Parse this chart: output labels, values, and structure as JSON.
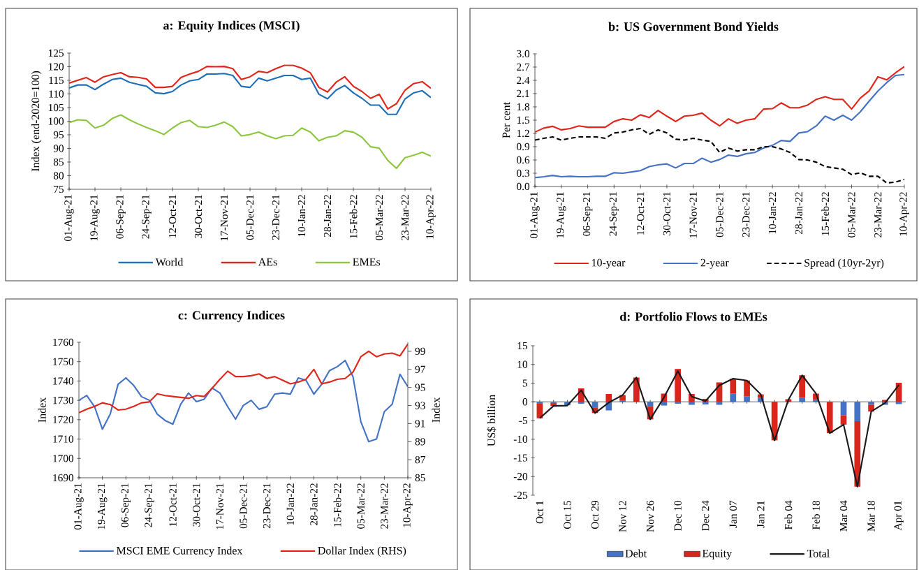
{
  "chart_data": [
    {
      "type": "line",
      "title": "a: Equity Indices (MSCI)",
      "ylabel": "Index (end-2020=100)",
      "legend": "bottom",
      "x": [
        "2021-08-01",
        "2021-08-07",
        "2021-08-13",
        "2021-08-19",
        "2021-08-25",
        "2021-08-31",
        "2021-09-06",
        "2021-09-12",
        "2021-09-18",
        "2021-09-24",
        "2021-09-30",
        "2021-10-06",
        "2021-10-12",
        "2021-10-18",
        "2021-10-24",
        "2021-10-30",
        "2021-11-05",
        "2021-11-11",
        "2021-11-17",
        "2021-11-23",
        "2021-11-29",
        "2021-12-05",
        "2021-12-11",
        "2021-12-17",
        "2021-12-23",
        "2021-12-29",
        "2022-01-04",
        "2022-01-10",
        "2022-01-16",
        "2022-01-22",
        "2022-01-28",
        "2022-02-03",
        "2022-02-09",
        "2022-02-15",
        "2022-02-21",
        "2022-02-27",
        "2022-03-05",
        "2022-03-11",
        "2022-03-17",
        "2022-03-23",
        "2022-03-29",
        "2022-04-04",
        "2022-04-10"
      ],
      "xlim": [
        "2021-08-01",
        "2022-04-10"
      ],
      "xticks": [
        {
          "value": "2021-08-01",
          "label": "01-Aug-21"
        },
        {
          "value": "2021-08-19",
          "label": "19-Aug-21"
        },
        {
          "value": "2021-09-06",
          "label": "06-Sep-21"
        },
        {
          "value": "2021-09-24",
          "label": "24-Sep-21"
        },
        {
          "value": "2021-10-12",
          "label": "12-Oct-21"
        },
        {
          "value": "2021-10-30",
          "label": "30-Oct-21"
        },
        {
          "value": "2021-11-17",
          "label": "17-Nov-21"
        },
        {
          "value": "2021-12-05",
          "label": "05-Dec-21"
        },
        {
          "value": "2021-12-23",
          "label": "23-Dec-21"
        },
        {
          "value": "2022-01-10",
          "label": "10-Jan-22"
        },
        {
          "value": "2022-01-28",
          "label": "28-Jan-22"
        },
        {
          "value": "2022-02-15",
          "label": "15-Feb-22"
        },
        {
          "value": "2022-03-05",
          "label": "05-Mar-22"
        },
        {
          "value": "2022-03-23",
          "label": "23-Mar-22"
        },
        {
          "value": "2022-04-10",
          "label": "10-Apr-22"
        }
      ],
      "ylim": [
        75,
        125
      ],
      "yticks": [
        75,
        80,
        85,
        90,
        95,
        100,
        105,
        110,
        115,
        120,
        125
      ],
      "series": [
        {
          "name": "World",
          "color": "#1f6fb8",
          "values": [
            112.2,
            113.3,
            113.3,
            111.6,
            113.6,
            115.3,
            115.8,
            114.3,
            113.5,
            112.8,
            110.4,
            110.1,
            110.9,
            113.3,
            114.8,
            115.3,
            117.3,
            117.3,
            117.5,
            116.8,
            112.8,
            112.4,
            115.8,
            114.8,
            115.8,
            116.8,
            116.8,
            115.3,
            115.8,
            109.9,
            108.2,
            111.4,
            113.1,
            110.4,
            108.4,
            105.9,
            105.9,
            102.5,
            102.5,
            108.2,
            110.4,
            111.2,
            108.7
          ]
        },
        {
          "name": "AEs",
          "color": "#e0261b",
          "values": [
            114.0,
            115.0,
            116.0,
            114.3,
            116.3,
            117.1,
            117.8,
            116.3,
            116.1,
            115.5,
            112.4,
            112.4,
            112.8,
            116.1,
            117.3,
            118.3,
            120.1,
            120.0,
            120.1,
            119.3,
            115.3,
            116.3,
            118.3,
            117.8,
            119.3,
            120.5,
            120.5,
            119.5,
            117.8,
            112.4,
            110.7,
            114.3,
            116.3,
            112.8,
            110.9,
            108.4,
            109.9,
            104.5,
            106.4,
            111.4,
            113.8,
            114.5,
            112.1
          ]
        },
        {
          "name": "EMEs",
          "color": "#8dc63f",
          "values": [
            99.5,
            100.5,
            100.3,
            97.5,
            98.5,
            101.0,
            102.3,
            100.5,
            99.0,
            97.7,
            96.5,
            95.1,
            97.5,
            99.5,
            100.3,
            98.0,
            97.7,
            98.5,
            99.7,
            98.0,
            94.6,
            95.1,
            96.0,
            94.6,
            93.6,
            94.6,
            94.8,
            97.5,
            96.0,
            92.8,
            94.1,
            94.6,
            96.5,
            96.0,
            94.1,
            90.6,
            90.1,
            85.6,
            82.7,
            86.6,
            87.5,
            88.6,
            87.2
          ]
        }
      ]
    },
    {
      "type": "line",
      "title": "b: US Government Bond Yields",
      "ylabel": "Per cent",
      "legend": "bottom",
      "x": [
        "2021-08-01",
        "2021-08-07",
        "2021-08-13",
        "2021-08-19",
        "2021-08-25",
        "2021-08-31",
        "2021-09-06",
        "2021-09-12",
        "2021-09-18",
        "2021-09-24",
        "2021-09-30",
        "2021-10-06",
        "2021-10-12",
        "2021-10-18",
        "2021-10-24",
        "2021-10-30",
        "2021-11-05",
        "2021-11-11",
        "2021-11-17",
        "2021-11-23",
        "2021-11-29",
        "2021-12-05",
        "2021-12-11",
        "2021-12-17",
        "2021-12-23",
        "2021-12-29",
        "2022-01-04",
        "2022-01-10",
        "2022-01-16",
        "2022-01-22",
        "2022-01-28",
        "2022-02-03",
        "2022-02-09",
        "2022-02-15",
        "2022-02-21",
        "2022-02-27",
        "2022-03-05",
        "2022-03-11",
        "2022-03-17",
        "2022-03-23",
        "2022-03-29",
        "2022-04-04",
        "2022-04-10"
      ],
      "xlim": [
        "2021-08-01",
        "2022-04-10"
      ],
      "xticks": [
        {
          "value": "2021-08-01",
          "label": "01-Aug-21"
        },
        {
          "value": "2021-08-19",
          "label": "19-Aug-21"
        },
        {
          "value": "2021-09-06",
          "label": "06-Sep-21"
        },
        {
          "value": "2021-09-24",
          "label": "24-Sep-21"
        },
        {
          "value": "2021-10-12",
          "label": "12-Oct-21"
        },
        {
          "value": "2021-10-30",
          "label": "30-Oct-21"
        },
        {
          "value": "2021-11-17",
          "label": "17-Nov-21"
        },
        {
          "value": "2021-12-05",
          "label": "05-Dec-21"
        },
        {
          "value": "2021-12-23",
          "label": "23-Dec-21"
        },
        {
          "value": "2022-01-10",
          "label": "10-Jan-22"
        },
        {
          "value": "2022-01-28",
          "label": "28-Jan-22"
        },
        {
          "value": "2022-02-15",
          "label": "15-Feb-22"
        },
        {
          "value": "2022-03-05",
          "label": "05-Mar-22"
        },
        {
          "value": "2022-03-23",
          "label": "23-Mar-22"
        },
        {
          "value": "2022-04-10",
          "label": "10-Apr-22"
        }
      ],
      "ylim": [
        0,
        3
      ],
      "yticks": [
        {
          "value": 0,
          "label": "0.0"
        },
        {
          "value": 0.3,
          "label": "0.3"
        },
        {
          "value": 0.6,
          "label": "0.6"
        },
        {
          "value": 0.9,
          "label": "0.9"
        },
        {
          "value": 1.2,
          "label": "1.2"
        },
        {
          "value": 1.5,
          "label": "1.5"
        },
        {
          "value": 1.8,
          "label": "1.8"
        },
        {
          "value": 2.1,
          "label": "2.1"
        },
        {
          "value": 2.4,
          "label": "2.4"
        },
        {
          "value": 2.7,
          "label": "2.7"
        },
        {
          "value": 3,
          "label": "3.0"
        }
      ],
      "series": [
        {
          "name": "10-year",
          "color": "#e0261b",
          "values": [
            1.23,
            1.32,
            1.36,
            1.28,
            1.31,
            1.37,
            1.34,
            1.34,
            1.34,
            1.47,
            1.53,
            1.5,
            1.62,
            1.56,
            1.72,
            1.59,
            1.47,
            1.59,
            1.61,
            1.66,
            1.5,
            1.37,
            1.53,
            1.43,
            1.5,
            1.53,
            1.75,
            1.76,
            1.89,
            1.78,
            1.78,
            1.84,
            1.97,
            2.03,
            1.97,
            1.97,
            1.75,
            2.0,
            2.16,
            2.48,
            2.41,
            2.57,
            2.71
          ]
        },
        {
          "name": "2-year",
          "color": "#4472c4",
          "values": [
            0.2,
            0.22,
            0.25,
            0.22,
            0.23,
            0.22,
            0.22,
            0.23,
            0.23,
            0.31,
            0.3,
            0.33,
            0.36,
            0.45,
            0.49,
            0.51,
            0.42,
            0.52,
            0.52,
            0.64,
            0.55,
            0.61,
            0.71,
            0.68,
            0.74,
            0.77,
            0.87,
            0.93,
            1.04,
            1.02,
            1.21,
            1.24,
            1.37,
            1.59,
            1.5,
            1.61,
            1.5,
            1.69,
            1.93,
            2.16,
            2.35,
            2.51,
            2.53
          ]
        },
        {
          "name": "Spread (10yr-2yr)",
          "color": "#000000",
          "line_style": "dashed",
          "values": [
            1.05,
            1.09,
            1.12,
            1.05,
            1.09,
            1.12,
            1.12,
            1.12,
            1.09,
            1.21,
            1.23,
            1.28,
            1.31,
            1.18,
            1.28,
            1.21,
            1.07,
            1.05,
            1.09,
            1.05,
            1.02,
            0.77,
            0.87,
            0.8,
            0.83,
            0.83,
            0.9,
            0.9,
            0.85,
            0.77,
            0.61,
            0.6,
            0.55,
            0.45,
            0.42,
            0.39,
            0.27,
            0.31,
            0.23,
            0.23,
            0.08,
            0.1,
            0.16
          ]
        }
      ]
    },
    {
      "type": "line",
      "title": "c: Currency Indices",
      "ylabel": "Index",
      "y2label": "Index",
      "legend": "bottom",
      "x": [
        "2021-08-01",
        "2021-08-07",
        "2021-08-13",
        "2021-08-19",
        "2021-08-25",
        "2021-08-31",
        "2021-09-06",
        "2021-09-12",
        "2021-09-18",
        "2021-09-24",
        "2021-09-30",
        "2021-10-06",
        "2021-10-12",
        "2021-10-18",
        "2021-10-24",
        "2021-10-30",
        "2021-11-05",
        "2021-11-11",
        "2021-11-17",
        "2021-11-23",
        "2021-11-29",
        "2021-12-05",
        "2021-12-11",
        "2021-12-17",
        "2021-12-23",
        "2021-12-29",
        "2022-01-04",
        "2022-01-10",
        "2022-01-16",
        "2022-01-22",
        "2022-01-28",
        "2022-02-03",
        "2022-02-09",
        "2022-02-15",
        "2022-02-21",
        "2022-02-27",
        "2022-03-05",
        "2022-03-11",
        "2022-03-17",
        "2022-03-23",
        "2022-03-29",
        "2022-04-04",
        "2022-04-10"
      ],
      "xlim": [
        "2021-08-01",
        "2022-04-10"
      ],
      "xticks": [
        {
          "value": "2021-08-01",
          "label": "01-Aug-21"
        },
        {
          "value": "2021-08-19",
          "label": "19-Aug-21"
        },
        {
          "value": "2021-09-06",
          "label": "06-Sep-21"
        },
        {
          "value": "2021-09-24",
          "label": "24-Sep-21"
        },
        {
          "value": "2021-10-12",
          "label": "12-Oct-21"
        },
        {
          "value": "2021-10-30",
          "label": "30-Oct-21"
        },
        {
          "value": "2021-11-17",
          "label": "17-Nov-21"
        },
        {
          "value": "2021-12-05",
          "label": "05-Dec-21"
        },
        {
          "value": "2021-12-23",
          "label": "23-Dec-21"
        },
        {
          "value": "2022-01-10",
          "label": "10-Jan-22"
        },
        {
          "value": "2022-01-28",
          "label": "28-Jan-22"
        },
        {
          "value": "2022-02-15",
          "label": "15-Feb-22"
        },
        {
          "value": "2022-03-05",
          "label": "05-Mar-22"
        },
        {
          "value": "2022-03-23",
          "label": "23-Mar-22"
        },
        {
          "value": "2022-04-10",
          "label": "10-Apr-22"
        }
      ],
      "ylim": [
        1690,
        1760
      ],
      "yticks": [
        1690,
        1700,
        1710,
        1720,
        1730,
        1740,
        1750,
        1760
      ],
      "y2lim": [
        85,
        100
      ],
      "y2ticks": [
        85,
        87,
        89,
        91,
        93,
        95,
        97,
        99
      ],
      "series": [
        {
          "name": "MSCI EME Currency Index",
          "color": "#4472c4",
          "values": [
            1730.0,
            1732.5,
            1726.7,
            1715.1,
            1722.9,
            1738.3,
            1741.6,
            1737.7,
            1731.9,
            1730.0,
            1722.9,
            1719.6,
            1717.7,
            1728.0,
            1733.8,
            1729.3,
            1730.6,
            1736.4,
            1733.8,
            1726.7,
            1720.3,
            1727.4,
            1730.0,
            1725.4,
            1726.7,
            1733.2,
            1733.8,
            1733.2,
            1741.6,
            1740.3,
            1733.2,
            1738.3,
            1745.4,
            1747.4,
            1750.6,
            1742.2,
            1719.0,
            1708.7,
            1710.0,
            1724.2,
            1728.0,
            1743.5,
            1737.1
          ]
        },
        {
          "name": "Dollar Index (RHS)",
          "color": "#e0261b",
          "axis": "y2",
          "values": [
            92.2,
            92.6,
            92.9,
            93.3,
            93.1,
            92.5,
            92.6,
            92.9,
            93.3,
            93.4,
            94.3,
            94.1,
            94.0,
            93.9,
            93.8,
            94.1,
            94.0,
            94.9,
            95.9,
            96.8,
            96.2,
            96.2,
            96.3,
            96.5,
            96.0,
            96.2,
            95.8,
            95.4,
            95.6,
            95.9,
            97.0,
            95.4,
            95.6,
            95.9,
            96.0,
            96.7,
            98.4,
            99.0,
            98.4,
            98.7,
            98.8,
            98.5,
            99.8
          ]
        }
      ]
    },
    {
      "type": "bar",
      "stacked": true,
      "title": "d: Portfolio Flows to EMEs",
      "ylabel": "US$ billion",
      "legend": "bottom",
      "categories": [
        "Oct 1",
        null,
        "Oct 15",
        null,
        "Oct 29",
        null,
        "Nov 12",
        null,
        "Nov 26",
        null,
        "Dec 10",
        null,
        "Dec 24",
        null,
        "Jan 07",
        null,
        "Jan 21",
        null,
        "Feb 04",
        null,
        "Feb 18",
        null,
        "Mar 04",
        null,
        "Mar 18",
        null,
        "Apr 01"
      ],
      "ylim": [
        -25,
        15
      ],
      "yticks": [
        -25,
        -20,
        -15,
        -10,
        -5,
        0,
        5,
        10,
        15
      ],
      "series": [
        {
          "name": "Debt",
          "color": "#4472c4",
          "values": [
            -0.5,
            -0.3,
            -0.9,
            -0.5,
            -1.5,
            -2.3,
            0.4,
            0,
            -1.3,
            -1.0,
            -0.5,
            -0.8,
            -0.7,
            -0.8,
            2.2,
            1.5,
            1.1,
            0,
            0,
            1.1,
            0.5,
            0,
            -3.6,
            -5.2,
            -0.8,
            -0.8,
            -0.6
          ]
        },
        {
          "name": "Equity",
          "color": "#d8261c",
          "values": [
            -3.9,
            -0.8,
            null,
            3.6,
            -1.5,
            2.1,
            1.4,
            6.5,
            -3.4,
            2.2,
            8.8,
            2.1,
            0.8,
            5.2,
            4.0,
            4.2,
            0.9,
            -10.3,
            0.7,
            6.0,
            1.7,
            -8.4,
            -2.5,
            -17.5,
            -1.8,
            0.5,
            5.1
          ]
        },
        {
          "name": "Total",
          "type": "line",
          "color": "#1a1a1a",
          "values": [
            -4.4,
            -1.1,
            -1.0,
            3.1,
            -3.0,
            -0.2,
            1.8,
            6.5,
            -4.7,
            1.2,
            8.2,
            1.4,
            0.2,
            4.4,
            6.2,
            5.7,
            2.0,
            -10.3,
            0.5,
            7.1,
            2.2,
            -8.4,
            -6.1,
            -22.7,
            -2.6,
            -0.3,
            4.5
          ]
        }
      ]
    }
  ]
}
